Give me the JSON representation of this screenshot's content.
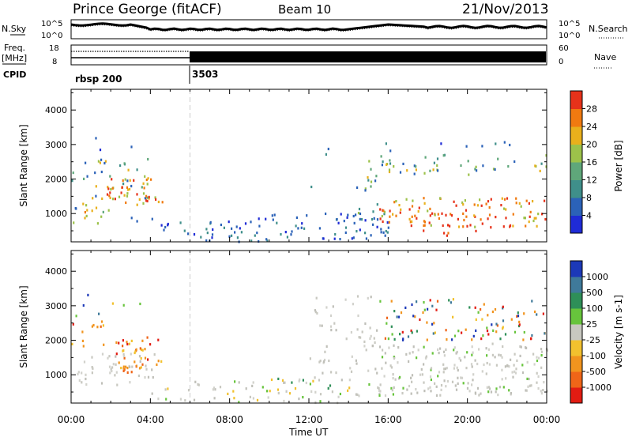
{
  "header": {
    "station": "Prince George (fitACF)",
    "beam": "Beam 10",
    "date": "21/Nov/2013"
  },
  "top_strip": {
    "nsky_label": "N.Sky",
    "nsearch_label": "N.Search",
    "noise_ticks": [
      "10^5",
      "10^0"
    ],
    "freq_label_1": "Freq.",
    "freq_label_2": "[MHz]",
    "freq_ticks": [
      "18",
      "8"
    ],
    "nave_label": "Nave",
    "nave_ticks": [
      "60",
      "0"
    ],
    "cpid_label": "CPID",
    "cpid_segments": [
      {
        "start": "00:00",
        "label": "rbsp 200"
      },
      {
        "start": "06:00",
        "label": "3503"
      }
    ]
  },
  "chart_data": [
    {
      "type": "heatmap",
      "title": "Power",
      "xlabel": "Time UT",
      "ylabel": "Slant Range [km]",
      "xlim": [
        "00:00",
        "24:00"
      ],
      "ylim": [
        180,
        4600
      ],
      "x_ticks": [
        "00:00",
        "04:00",
        "08:00",
        "12:00",
        "16:00",
        "20:00",
        "00:00"
      ],
      "y_ticks": [
        1000,
        2000,
        3000,
        4000
      ],
      "colorbar": {
        "label": "Power [dB]",
        "ticks": [
          "4",
          "8",
          "12",
          "16",
          "20",
          "24",
          "28"
        ],
        "colors": [
          "#1f2bd6",
          "#2b62b8",
          "#3f8f8a",
          "#5fa77a",
          "#9cc24a",
          "#e9b01c",
          "#f07a10",
          "#e7321a"
        ]
      },
      "regions": [
        {
          "t": [
            0.0,
            4.0
          ],
          "r": [
            700,
            2600
          ],
          "level": "mixed low-mid"
        },
        {
          "t": [
            1.5,
            4.5
          ],
          "r": [
            1200,
            2100
          ],
          "level": "high"
        },
        {
          "t": [
            4.5,
            10.0
          ],
          "r": [
            180,
            800
          ],
          "level": "low"
        },
        {
          "t": [
            10.0,
            16.0
          ],
          "r": [
            300,
            1000
          ],
          "level": "low"
        },
        {
          "t": [
            12.0,
            16.0
          ],
          "r": [
            800,
            3300
          ],
          "level": "mid"
        },
        {
          "t": [
            15.5,
            24.0
          ],
          "r": [
            1300,
            3000
          ],
          "level": "mid"
        },
        {
          "t": [
            15.5,
            24.0
          ],
          "r": [
            500,
            1500
          ],
          "level": "high"
        }
      ]
    },
    {
      "type": "heatmap",
      "title": "Velocity",
      "xlabel": "Time UT",
      "ylabel": "Slant Range [km]",
      "xlim": [
        "00:00",
        "24:00"
      ],
      "ylim": [
        180,
        4600
      ],
      "x_ticks": [
        "00:00",
        "04:00",
        "08:00",
        "12:00",
        "16:00",
        "20:00",
        "00:00"
      ],
      "y_ticks": [
        1000,
        2000,
        3000,
        4000
      ],
      "colorbar": {
        "label": "Velocity [m s-1]",
        "ticks": [
          "1000",
          "500",
          "100",
          "25",
          "-25",
          "-100",
          "-500",
          "-1000"
        ],
        "colors": [
          "#1c39b8",
          "#3f7a9a",
          "#2e8f58",
          "#67c43c",
          "#c8c8c0",
          "#f2c12e",
          "#f1941e",
          "#ef6518",
          "#e21c12"
        ]
      },
      "regions": [
        {
          "t": [
            0.0,
            1.5
          ],
          "r": [
            1800,
            2600
          ],
          "level": "negative"
        },
        {
          "t": [
            2.0,
            4.5
          ],
          "r": [
            1000,
            2100
          ],
          "level": "negative"
        },
        {
          "t": [
            0.0,
            4.0
          ],
          "r": [
            700,
            1600
          ],
          "level": "near zero"
        },
        {
          "t": [
            4.0,
            16.0
          ],
          "r": [
            180,
            900
          ],
          "level": "near zero / mixed"
        },
        {
          "t": [
            12.0,
            16.0
          ],
          "r": [
            800,
            3300
          ],
          "level": "near zero"
        },
        {
          "t": [
            15.5,
            24.0
          ],
          "r": [
            400,
            1900
          ],
          "level": "near zero"
        },
        {
          "t": [
            15.5,
            24.0
          ],
          "r": [
            2000,
            3200
          ],
          "level": "negative / positive mixed"
        }
      ]
    }
  ],
  "x_axis": {
    "title": "Time UT"
  }
}
